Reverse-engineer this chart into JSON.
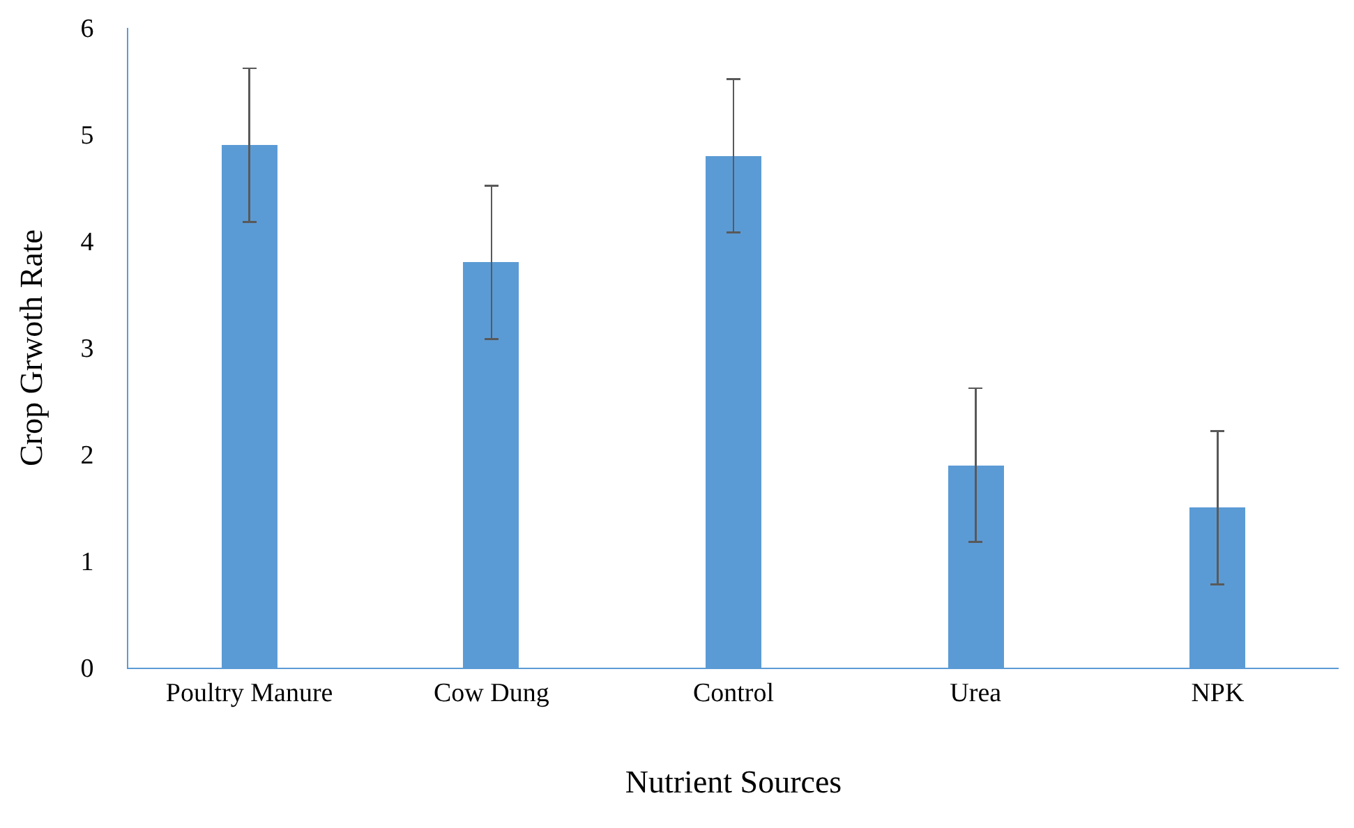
{
  "chart_data": {
    "type": "bar",
    "xlabel": "Nutrient Sources",
    "ylabel": "Crop Grwoth Rate",
    "categories": [
      "Poultry Manure",
      "Cow Dung",
      "Control",
      "Urea",
      "NPK"
    ],
    "values": [
      4.9,
      3.8,
      4.8,
      1.9,
      1.5
    ],
    "errors": [
      0.72,
      0.72,
      0.72,
      0.72,
      0.72
    ],
    "color": "#5b9bd5",
    "ylim": [
      0,
      6
    ],
    "yticks": [
      0,
      1,
      2,
      3,
      4,
      5,
      6
    ]
  }
}
